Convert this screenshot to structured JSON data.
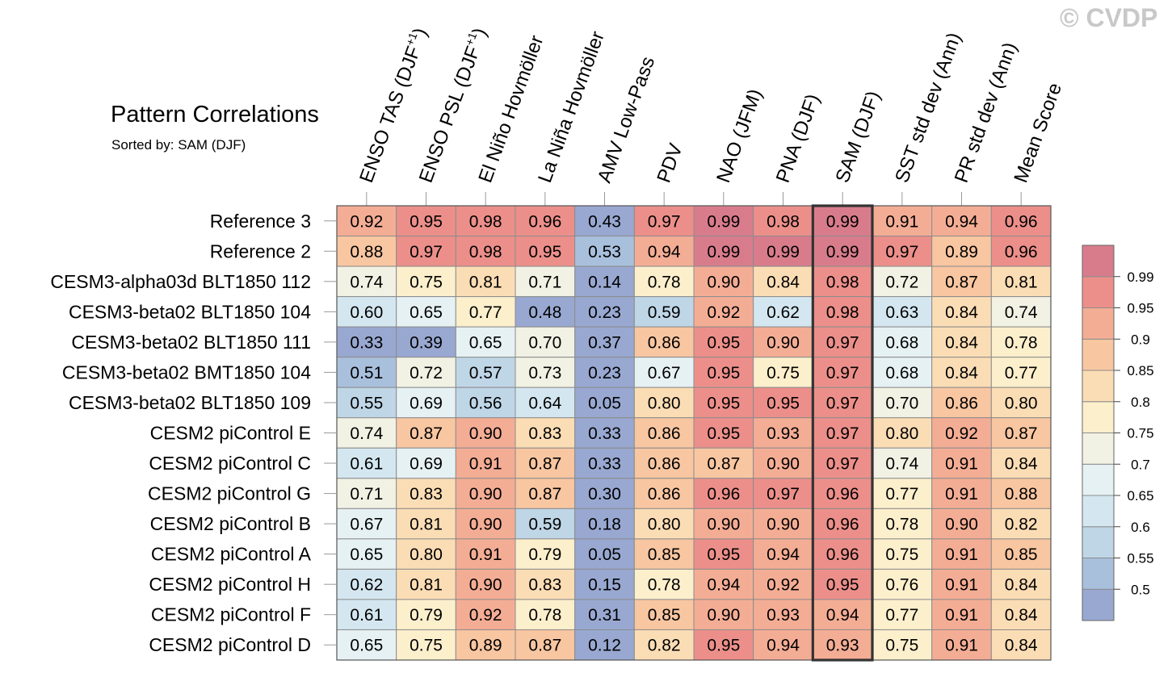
{
  "watermark": "© CVDP",
  "chart_data": {
    "type": "heatmap",
    "title": "Pattern Correlations",
    "subtitle": "Sorted by: SAM (DJF)",
    "highlight_column": "SAM (DJF)",
    "columns": [
      "ENSO TAS (DJF+1)",
      "ENSO PSL (DJF+1)",
      "El Niño Hovmöller",
      "La Niña Hovmöller",
      "AMV Low-Pass",
      "PDV",
      "NAO (JFM)",
      "PNA (DJF)",
      "SAM (DJF)",
      "SST std dev (Ann)",
      "PR std dev (Ann)",
      "Mean Score"
    ],
    "rows": [
      {
        "label": "Reference 3",
        "values": [
          "0.92",
          "0.95",
          "0.98",
          "0.96",
          "0.43",
          "0.97",
          "0.99",
          "0.98",
          "0.99",
          "0.91",
          "0.94",
          "0.96"
        ]
      },
      {
        "label": "Reference 2",
        "values": [
          "0.88",
          "0.97",
          "0.98",
          "0.95",
          "0.53",
          "0.94",
          "0.99",
          "0.99",
          "0.99",
          "0.97",
          "0.89",
          "0.96"
        ]
      },
      {
        "label": "CESM3-alpha03d BLT1850 112",
        "values": [
          "0.74",
          "0.75",
          "0.81",
          "0.71",
          "0.14",
          "0.78",
          "0.90",
          "0.84",
          "0.98",
          "0.72",
          "0.87",
          "0.81"
        ]
      },
      {
        "label": "CESM3-beta02 BLT1850 104",
        "values": [
          "0.60",
          "0.65",
          "0.77",
          "0.48",
          "0.23",
          "0.59",
          "0.92",
          "0.62",
          "0.98",
          "0.63",
          "0.84",
          "0.74"
        ]
      },
      {
        "label": "CESM3-beta02 BLT1850 111",
        "values": [
          "0.33",
          "0.39",
          "0.65",
          "0.70",
          "0.37",
          "0.86",
          "0.95",
          "0.90",
          "0.97",
          "0.68",
          "0.84",
          "0.78"
        ]
      },
      {
        "label": "CESM3-beta02 BMT1850 104",
        "values": [
          "0.51",
          "0.72",
          "0.57",
          "0.73",
          "0.23",
          "0.67",
          "0.95",
          "0.75",
          "0.97",
          "0.68",
          "0.84",
          "0.77"
        ]
      },
      {
        "label": "CESM3-beta02 BLT1850 109",
        "values": [
          "0.55",
          "0.69",
          "0.56",
          "0.64",
          "0.05",
          "0.80",
          "0.95",
          "0.95",
          "0.97",
          "0.70",
          "0.86",
          "0.80"
        ]
      },
      {
        "label": "CESM2 piControl E",
        "values": [
          "0.74",
          "0.87",
          "0.90",
          "0.83",
          "0.33",
          "0.86",
          "0.95",
          "0.93",
          "0.97",
          "0.80",
          "0.92",
          "0.87"
        ]
      },
      {
        "label": "CESM2 piControl C",
        "values": [
          "0.61",
          "0.69",
          "0.91",
          "0.87",
          "0.33",
          "0.86",
          "0.87",
          "0.90",
          "0.97",
          "0.74",
          "0.91",
          "0.84"
        ]
      },
      {
        "label": "CESM2 piControl G",
        "values": [
          "0.71",
          "0.83",
          "0.90",
          "0.87",
          "0.30",
          "0.86",
          "0.96",
          "0.97",
          "0.96",
          "0.77",
          "0.91",
          "0.88"
        ]
      },
      {
        "label": "CESM2 piControl B",
        "values": [
          "0.67",
          "0.81",
          "0.90",
          "0.59",
          "0.18",
          "0.80",
          "0.90",
          "0.90",
          "0.96",
          "0.78",
          "0.90",
          "0.82"
        ]
      },
      {
        "label": "CESM2 piControl A",
        "values": [
          "0.65",
          "0.80",
          "0.91",
          "0.79",
          "0.05",
          "0.85",
          "0.95",
          "0.94",
          "0.96",
          "0.75",
          "0.91",
          "0.85"
        ]
      },
      {
        "label": "CESM2 piControl H",
        "values": [
          "0.62",
          "0.81",
          "0.90",
          "0.83",
          "0.15",
          "0.78",
          "0.94",
          "0.92",
          "0.95",
          "0.76",
          "0.91",
          "0.84"
        ]
      },
      {
        "label": "CESM2 piControl F",
        "values": [
          "0.61",
          "0.79",
          "0.92",
          "0.78",
          "0.31",
          "0.85",
          "0.90",
          "0.93",
          "0.94",
          "0.77",
          "0.91",
          "0.84"
        ]
      },
      {
        "label": "CESM2 piControl D",
        "values": [
          "0.65",
          "0.75",
          "0.89",
          "0.87",
          "0.12",
          "0.82",
          "0.95",
          "0.94",
          "0.93",
          "0.75",
          "0.91",
          "0.84"
        ]
      }
    ],
    "colorbar": {
      "levels": [
        "0.5",
        "0.55",
        "0.6",
        "0.65",
        "0.7",
        "0.75",
        "0.8",
        "0.85",
        "0.9",
        "0.95",
        "0.99"
      ],
      "colors": [
        "#98a8d1",
        "#a9c0dd",
        "#bfd6e7",
        "#d4e7f0",
        "#e6f1f4",
        "#f1f1e4",
        "#fcefcc",
        "#fbddb5",
        "#f8c6a1",
        "#f4ad95",
        "#ec8f8a",
        "#d87c8c"
      ]
    }
  }
}
